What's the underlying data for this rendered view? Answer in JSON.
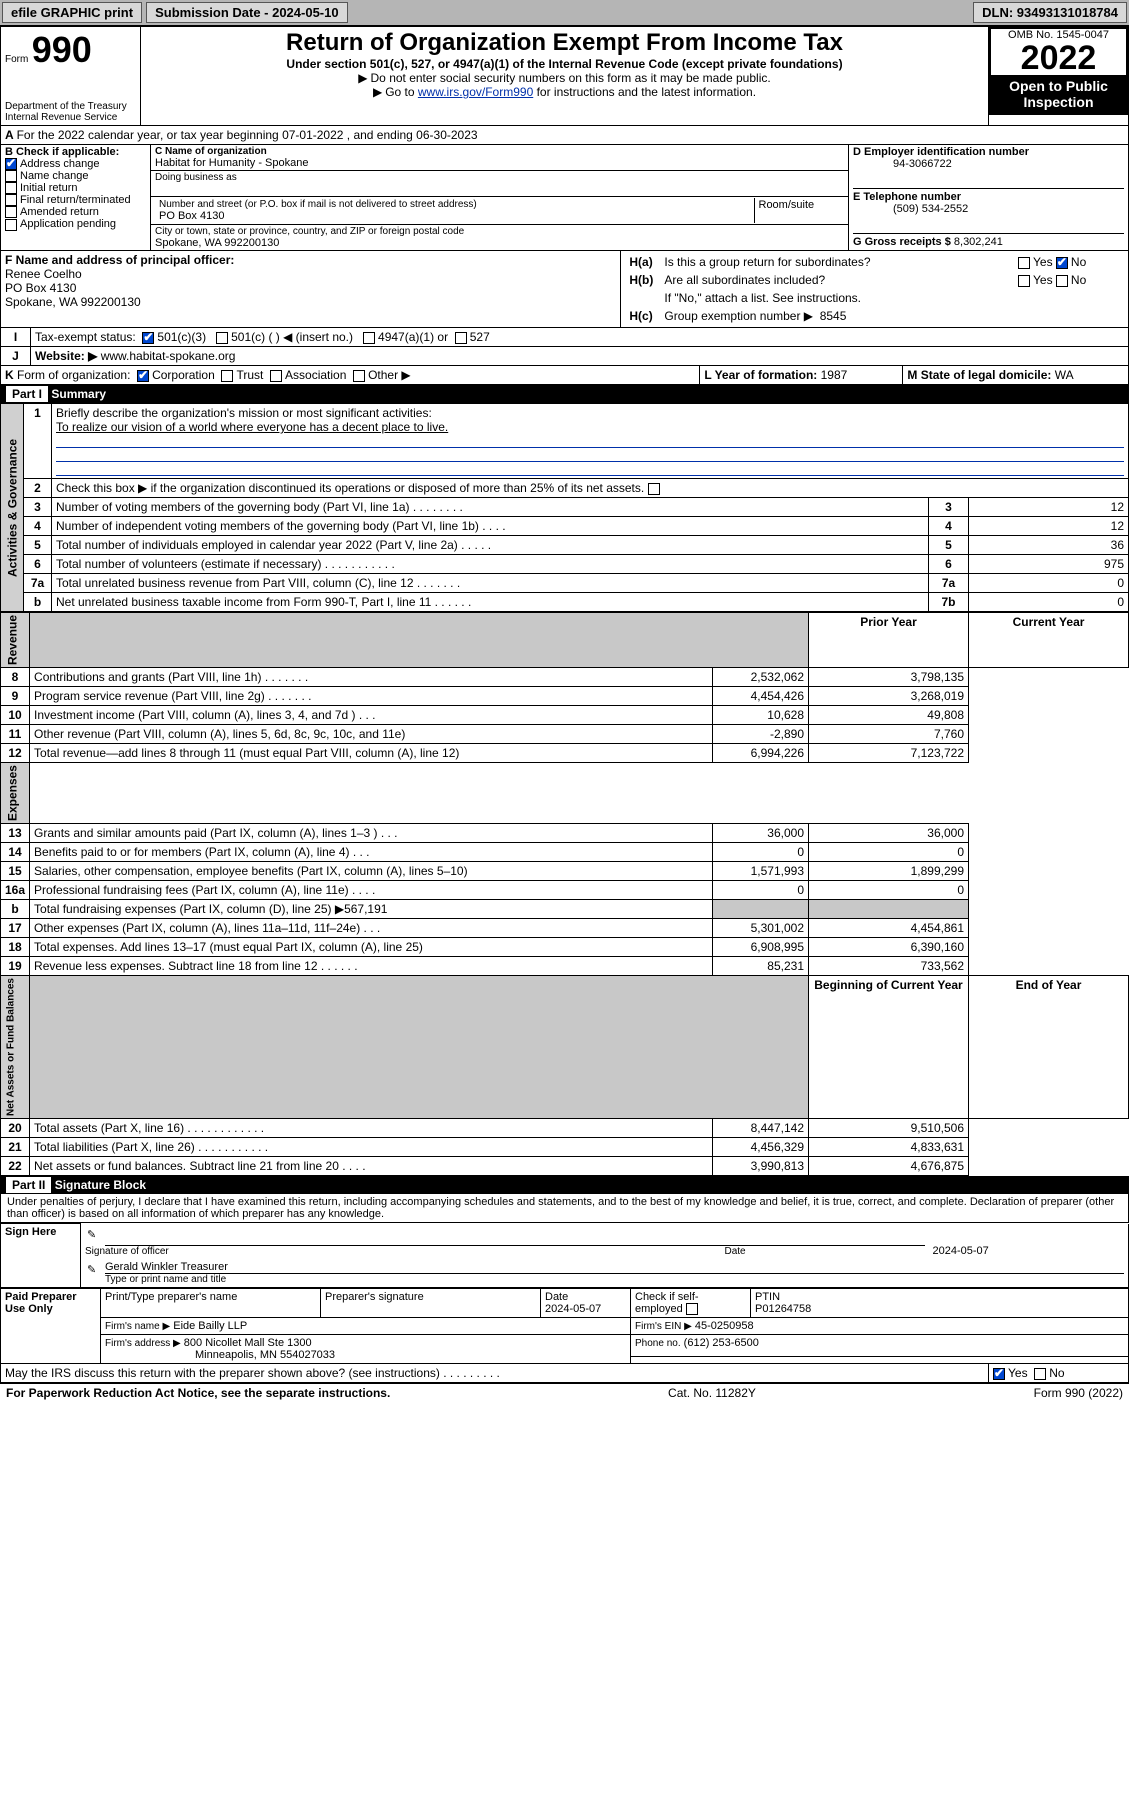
{
  "topbar": {
    "efile": "efile GRAPHIC print",
    "submission": "Submission Date - 2024-05-10",
    "dln": "DLN: 93493131018784"
  },
  "header": {
    "form_label": "Form",
    "form_num": "990",
    "dept": "Department of the Treasury",
    "irs": "Internal Revenue Service",
    "title": "Return of Organization Exempt From Income Tax",
    "sub1": "Under section 501(c), 527, or 4947(a)(1) of the Internal Revenue Code (except private foundations)",
    "sub2": "Do not enter social security numbers on this form as it may be made public.",
    "sub3_pre": "Go to ",
    "sub3_link": "www.irs.gov/Form990",
    "sub3_post": " for instructions and the latest information.",
    "omb": "OMB No. 1545-0047",
    "year": "2022",
    "inspect": "Open to Public Inspection"
  },
  "lineA": "For the 2022 calendar year, or tax year beginning 07-01-2022   , and ending 06-30-2023",
  "boxB": {
    "label": "B Check if applicable:",
    "addr": "Address change",
    "name": "Name change",
    "init": "Initial return",
    "final": "Final return/terminated",
    "amend": "Amended return",
    "app": "Application pending"
  },
  "boxC": {
    "label_name": "C Name of organization",
    "name": "Habitat for Humanity - Spokane",
    "dba": "Doing business as",
    "street_label": "Number and street (or P.O. box if mail is not delivered to street address)",
    "room": "Room/suite",
    "street": "PO Box 4130",
    "city_label": "City or town, state or province, country, and ZIP or foreign postal code",
    "city": "Spokane, WA  992200130"
  },
  "boxD": {
    "label": "D Employer identification number",
    "val": "94-3066722"
  },
  "boxE": {
    "label": "E Telephone number",
    "val": "(509) 534-2552"
  },
  "boxG": {
    "label": "G Gross receipts $",
    "val": "8,302,241"
  },
  "boxF": {
    "label": "F Name and address of principal officer:",
    "name": "Renee Coelho",
    "addr1": "PO Box 4130",
    "addr2": "Spokane, WA  992200130"
  },
  "boxH": {
    "a": "Is this a group return for subordinates?",
    "b": "Are all subordinates included?",
    "note": "If \"No,\" attach a list. See instructions.",
    "c_label": "Group exemption number ▶",
    "c_val": "8545",
    "ha": "H(a)",
    "hb": "H(b)",
    "hc": "H(c)",
    "yes": "Yes",
    "no": "No"
  },
  "boxI": {
    "label": "Tax-exempt status:",
    "i": "I",
    "c3": "501(c)(3)",
    "c": "501(c) (  ) ◀ (insert no.)",
    "a1": "4947(a)(1) or",
    "s527": "527"
  },
  "boxJ": {
    "j": "J",
    "label": "Website: ▶",
    "val": "www.habitat-spokane.org"
  },
  "boxK": {
    "k": "K",
    "label": "Form of organization:",
    "corp": "Corporation",
    "trust": "Trust",
    "assoc": "Association",
    "other": "Other ▶"
  },
  "boxL": {
    "label": "L Year of formation:",
    "val": "1987"
  },
  "boxM": {
    "label": "M State of legal domicile:",
    "val": "WA"
  },
  "part1": {
    "hdr": "Part I",
    "title": "Summary",
    "side_ag": "Activities & Governance",
    "side_rev": "Revenue",
    "side_exp": "Expenses",
    "side_net": "Net Assets or Fund Balances",
    "l1": "Briefly describe the organization's mission or most significant activities:",
    "l1v": "To realize our vision of a world where everyone has a decent place to live.",
    "l2": "Check this box ▶      if the organization discontinued its operations or disposed of more than 25% of its net assets.",
    "rows_ag": [
      {
        "n": "3",
        "t": "Number of voting members of the governing body (Part VI, line 1a)   .    .    .    .    .    .    .    .",
        "c": "3",
        "v": "12"
      },
      {
        "n": "4",
        "t": "Number of independent voting members of the governing body (Part VI, line 1b)  .    .    .    .",
        "c": "4",
        "v": "12"
      },
      {
        "n": "5",
        "t": "Total number of individuals employed in calendar year 2022 (Part V, line 2a)  .    .    .    .    .",
        "c": "5",
        "v": "36"
      },
      {
        "n": "6",
        "t": "Total number of volunteers (estimate if necessary)   .    .    .    .    .    .    .    .    .    .    .",
        "c": "6",
        "v": "975"
      },
      {
        "n": "7a",
        "t": "Total unrelated business revenue from Part VIII, column (C), line 12  .    .    .    .    .    .    .",
        "c": "7a",
        "v": "0"
      },
      {
        "n": "b",
        "t": "Net unrelated business taxable income from Form 990-T, Part I, line 11  .    .    .    .    .    .",
        "c": "7b",
        "v": "0"
      }
    ],
    "col_prior": "Prior Year",
    "col_curr": "Current Year",
    "rows_rev": [
      {
        "n": "8",
        "t": "Contributions and grants (Part VIII, line 1h)   .    .    .    .    .    .    .",
        "p": "2,532,062",
        "c": "3,798,135"
      },
      {
        "n": "9",
        "t": "Program service revenue (Part VIII, line 2g)   .    .    .    .    .    .    .",
        "p": "4,454,426",
        "c": "3,268,019"
      },
      {
        "n": "10",
        "t": "Investment income (Part VIII, column (A), lines 3, 4, and 7d )   .    .    .",
        "p": "10,628",
        "c": "49,808"
      },
      {
        "n": "11",
        "t": "Other revenue (Part VIII, column (A), lines 5, 6d, 8c, 9c, 10c, and 11e)",
        "p": "-2,890",
        "c": "7,760"
      },
      {
        "n": "12",
        "t": "Total revenue—add lines 8 through 11 (must equal Part VIII, column (A), line 12)",
        "p": "6,994,226",
        "c": "7,123,722"
      }
    ],
    "rows_exp": [
      {
        "n": "13",
        "t": "Grants and similar amounts paid (Part IX, column (A), lines 1–3 )   .    .    .",
        "p": "36,000",
        "c": "36,000"
      },
      {
        "n": "14",
        "t": "Benefits paid to or for members (Part IX, column (A), line 4)  .    .    .",
        "p": "0",
        "c": "0"
      },
      {
        "n": "15",
        "t": "Salaries, other compensation, employee benefits (Part IX, column (A), lines 5–10)",
        "p": "1,571,993",
        "c": "1,899,299"
      },
      {
        "n": "16a",
        "t": "Professional fundraising fees (Part IX, column (A), line 11e)  .    .    .    .",
        "p": "0",
        "c": "0"
      },
      {
        "n": "b",
        "t": "Total fundraising expenses (Part IX, column (D), line 25) ▶567,191",
        "p": "",
        "c": ""
      },
      {
        "n": "17",
        "t": "Other expenses (Part IX, column (A), lines 11a–11d, 11f–24e)  .    .    .",
        "p": "5,301,002",
        "c": "4,454,861"
      },
      {
        "n": "18",
        "t": "Total expenses. Add lines 13–17 (must equal Part IX, column (A), line 25)",
        "p": "6,908,995",
        "c": "6,390,160"
      },
      {
        "n": "19",
        "t": "Revenue less expenses. Subtract line 18 from line 12  .    .    .    .    .    .",
        "p": "85,231",
        "c": "733,562"
      }
    ],
    "col_beg": "Beginning of Current Year",
    "col_end": "End of Year",
    "rows_net": [
      {
        "n": "20",
        "t": "Total assets (Part X, line 16)   .    .    .    .    .    .    .    .    .    .    .    .",
        "p": "8,447,142",
        "c": "9,510,506"
      },
      {
        "n": "21",
        "t": "Total liabilities (Part X, line 26)  .    .    .    .    .    .    .    .    .    .    .",
        "p": "4,456,329",
        "c": "4,833,631"
      },
      {
        "n": "22",
        "t": "Net assets or fund balances. Subtract line 21 from line 20  .    .    .    .",
        "p": "3,990,813",
        "c": "4,676,875"
      }
    ]
  },
  "part2": {
    "hdr": "Part II",
    "title": "Signature Block",
    "decl": "Under penalties of perjury, I declare that I have examined this return, including accompanying schedules and statements, and to the best of my knowledge and belief, it is true, correct, and complete. Declaration of preparer (other than officer) is based on all information of which preparer has any knowledge.",
    "sign_here": "Sign Here",
    "sig_officer": "Signature of officer",
    "date_label": "Date",
    "sig_date": "2024-05-07",
    "name_title": "Gerald Winkler  Treasurer",
    "type_name": "Type or print name and title",
    "paid": "Paid Preparer Use Only",
    "prep_name_h": "Print/Type preparer's name",
    "prep_sig_h": "Preparer's signature",
    "date_h": "Date",
    "prep_date": "2024-05-07",
    "check_self": "Check       if self-employed",
    "ptin_h": "PTIN",
    "ptin": "P01264758",
    "firm_name_l": "Firm's name    ▶",
    "firm_name": "Eide Bailly LLP",
    "firm_ein_l": "Firm's EIN ▶",
    "firm_ein": "45-0250958",
    "firm_addr_l": "Firm's address ▶",
    "firm_addr1": "800 Nicollet Mall Ste 1300",
    "firm_addr2": "Minneapolis, MN  554027033",
    "phone_l": "Phone no.",
    "phone": "(612) 253-6500",
    "discuss": "May the IRS discuss this return with the preparer shown above? (see instructions)   .    .    .    .    .    .    .    .    .",
    "yes": "Yes",
    "no": "No"
  },
  "footer": {
    "pra": "For Paperwork Reduction Act Notice, see the separate instructions.",
    "cat": "Cat. No. 11282Y",
    "form": "Form 990 (2022)"
  }
}
